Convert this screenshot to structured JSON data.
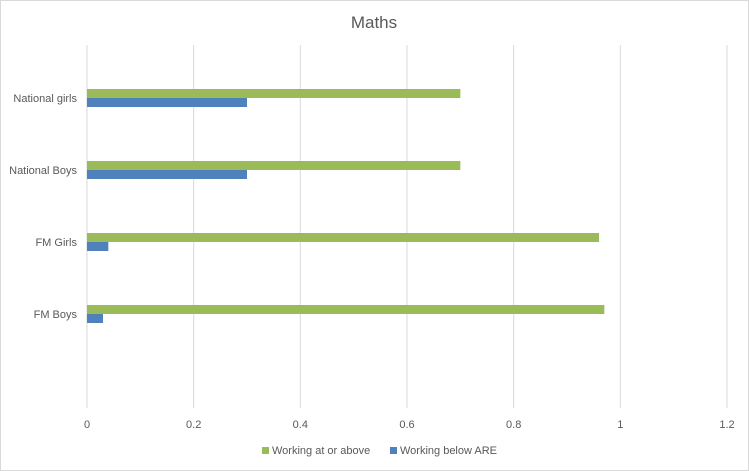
{
  "chart_data": {
    "type": "bar",
    "orientation": "horizontal",
    "title": "Maths",
    "categories": [
      "National girls",
      "National Boys",
      "FM Girls",
      "FM Boys"
    ],
    "series": [
      {
        "name": "Working at or above",
        "color": "#9bbb59",
        "values": [
          0.7,
          0.7,
          0.96,
          0.97
        ]
      },
      {
        "name": "Working below ARE",
        "color": "#4f81bd",
        "values": [
          0.3,
          0.3,
          0.04,
          0.03
        ]
      }
    ],
    "xlim": [
      0,
      1.2
    ],
    "xticks": [
      "0",
      "0.2",
      "0.4",
      "0.6",
      "0.8",
      "1",
      "1.2"
    ],
    "grid": true,
    "legend": "bottom"
  }
}
